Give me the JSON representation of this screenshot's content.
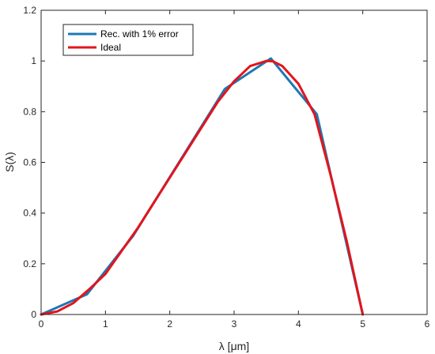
{
  "chart_data": {
    "type": "line",
    "xlabel": "λ [μm]",
    "ylabel": "S(λ)",
    "xlim": [
      0,
      6
    ],
    "ylim": [
      0,
      1.2
    ],
    "xticks": [
      "0",
      "1",
      "2",
      "3",
      "4",
      "5",
      "6"
    ],
    "yticks": [
      "0",
      "0.2",
      "0.4",
      "0.6",
      "0.8",
      "1",
      "1.2"
    ],
    "grid": false,
    "legend_position": "top-left",
    "series": [
      {
        "name": "Rec. with 1% error",
        "color": "#1f77b4",
        "x": [
          0,
          0.714,
          1.429,
          2.143,
          2.857,
          3.571,
          4.286,
          5.0
        ],
        "y": [
          0.0,
          0.08,
          0.31,
          0.6,
          0.89,
          1.01,
          0.79,
          0.0
        ]
      },
      {
        "name": "Ideal",
        "color": "#e3141b",
        "x": [
          0,
          0.25,
          0.5,
          0.75,
          1.0,
          1.25,
          1.5,
          1.75,
          2.0,
          2.25,
          2.5,
          2.75,
          3.0,
          3.25,
          3.5,
          3.6,
          3.75,
          4.0,
          4.25,
          4.5,
          4.75,
          5.0
        ],
        "y": [
          0.0,
          0.012,
          0.045,
          0.1,
          0.16,
          0.25,
          0.34,
          0.44,
          0.54,
          0.64,
          0.74,
          0.84,
          0.92,
          0.98,
          1.0,
          0.999,
          0.98,
          0.91,
          0.79,
          0.55,
          0.29,
          0.0
        ]
      }
    ]
  }
}
